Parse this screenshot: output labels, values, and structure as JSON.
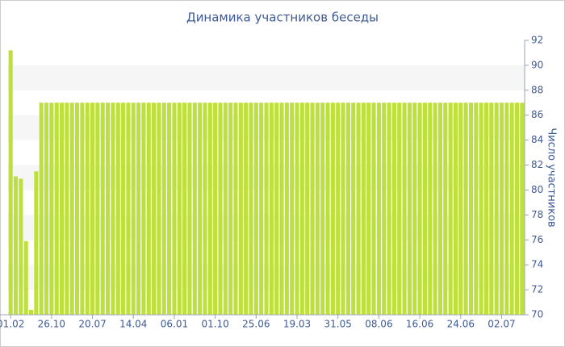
{
  "chart_data": {
    "type": "bar",
    "title": "Динамика участников беседы",
    "y_label": "Число участников",
    "categories": [
      "01.02",
      null,
      null,
      null,
      null,
      null,
      null,
      null,
      "26.10",
      null,
      null,
      null,
      null,
      null,
      null,
      null,
      "20.07",
      null,
      null,
      null,
      null,
      null,
      null,
      null,
      "14.04",
      null,
      null,
      null,
      null,
      null,
      null,
      null,
      "06.01",
      null,
      null,
      null,
      null,
      null,
      null,
      null,
      "01.10",
      null,
      null,
      null,
      null,
      null,
      null,
      null,
      "25.06",
      null,
      null,
      null,
      null,
      null,
      null,
      null,
      "19.03",
      null,
      null,
      null,
      null,
      null,
      null,
      null,
      "31.05",
      null,
      null,
      null,
      null,
      null,
      null,
      null,
      "08.06",
      null,
      null,
      null,
      null,
      null,
      null,
      null,
      "16.06",
      null,
      null,
      null,
      null,
      null,
      null,
      null,
      "24.06",
      null,
      null,
      null,
      null,
      null,
      null,
      null,
      "02.07",
      null,
      null,
      null,
      null
    ],
    "values": [
      91.2,
      81.1,
      80.9,
      75.9,
      70.4,
      81.5,
      87,
      87,
      87,
      87,
      87,
      87,
      87,
      87,
      87,
      87,
      87,
      87,
      87,
      87,
      87,
      87,
      87,
      87,
      87,
      87,
      87,
      87,
      87,
      87,
      87,
      87,
      87,
      87,
      87,
      87,
      87,
      87,
      87,
      87,
      87,
      87,
      87,
      87,
      87,
      87,
      87,
      87,
      87,
      87,
      87,
      87,
      87,
      87,
      87,
      87,
      87,
      87,
      87,
      87,
      87,
      87,
      87,
      87,
      87,
      87,
      87,
      87,
      87,
      87,
      87,
      87,
      87,
      87,
      87,
      87,
      87,
      87,
      87,
      87,
      87,
      87,
      87,
      87,
      87,
      87,
      87,
      87,
      87,
      87,
      87,
      87,
      87,
      87,
      87,
      87,
      87,
      87,
      87,
      87,
      87
    ],
    "color": "#bde03a",
    "ylim": [
      70,
      92
    ],
    "yticks": [
      70,
      72,
      74,
      76,
      78,
      80,
      82,
      84,
      86,
      88,
      90,
      92
    ],
    "grid": true,
    "y_axis_side": "right"
  }
}
